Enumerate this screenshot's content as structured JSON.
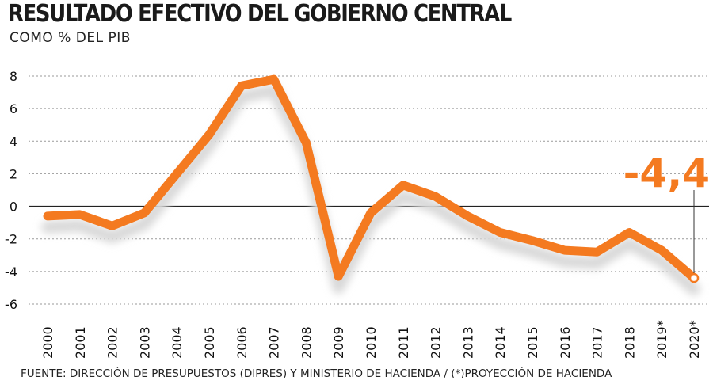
{
  "title": "RESULTADO EFECTIVO DEL GOBIERNO CENTRAL",
  "subtitle": "COMO % DEL PIB",
  "source": "FUENTE: DIRECCIÓN DE PRESUPUESTOS (DIPRES) Y MINISTERIO DE HACIENDA / (*)PROYECCIÓN DE HACIENDA",
  "callout": "-4,4",
  "colors": {
    "line": "#f47a20",
    "shadow": "#d9d9d9",
    "grid": "#9a9a9a",
    "zero_line": "#222222"
  },
  "chart_data": {
    "type": "line",
    "title": "RESULTADO EFECTIVO DEL GOBIERNO CENTRAL",
    "subtitle": "COMO % DEL PIB",
    "categories": [
      "2000",
      "2001",
      "2002",
      "2003",
      "2004",
      "2005",
      "2006",
      "2007",
      "2008",
      "2009",
      "2010",
      "2011",
      "2012",
      "2013",
      "2014",
      "2015",
      "2016",
      "2017",
      "2018",
      "2019*",
      "2020*"
    ],
    "series": [
      {
        "values": [
          -0.6,
          -0.5,
          -1.2,
          -0.4,
          2.0,
          4.4,
          7.4,
          7.8,
          3.9,
          -4.3,
          -0.4,
          1.3,
          0.6,
          -0.6,
          -1.6,
          -2.1,
          -2.7,
          -2.8,
          -1.6,
          -2.7,
          -4.4
        ]
      }
    ],
    "yticks": [
      8,
      6,
      4,
      2,
      0,
      -2,
      -4,
      -6
    ],
    "ylim": [
      -6,
      8
    ],
    "grid": true,
    "highlight": {
      "category": "2020*",
      "value": -4.4,
      "label": "-4,4"
    }
  }
}
